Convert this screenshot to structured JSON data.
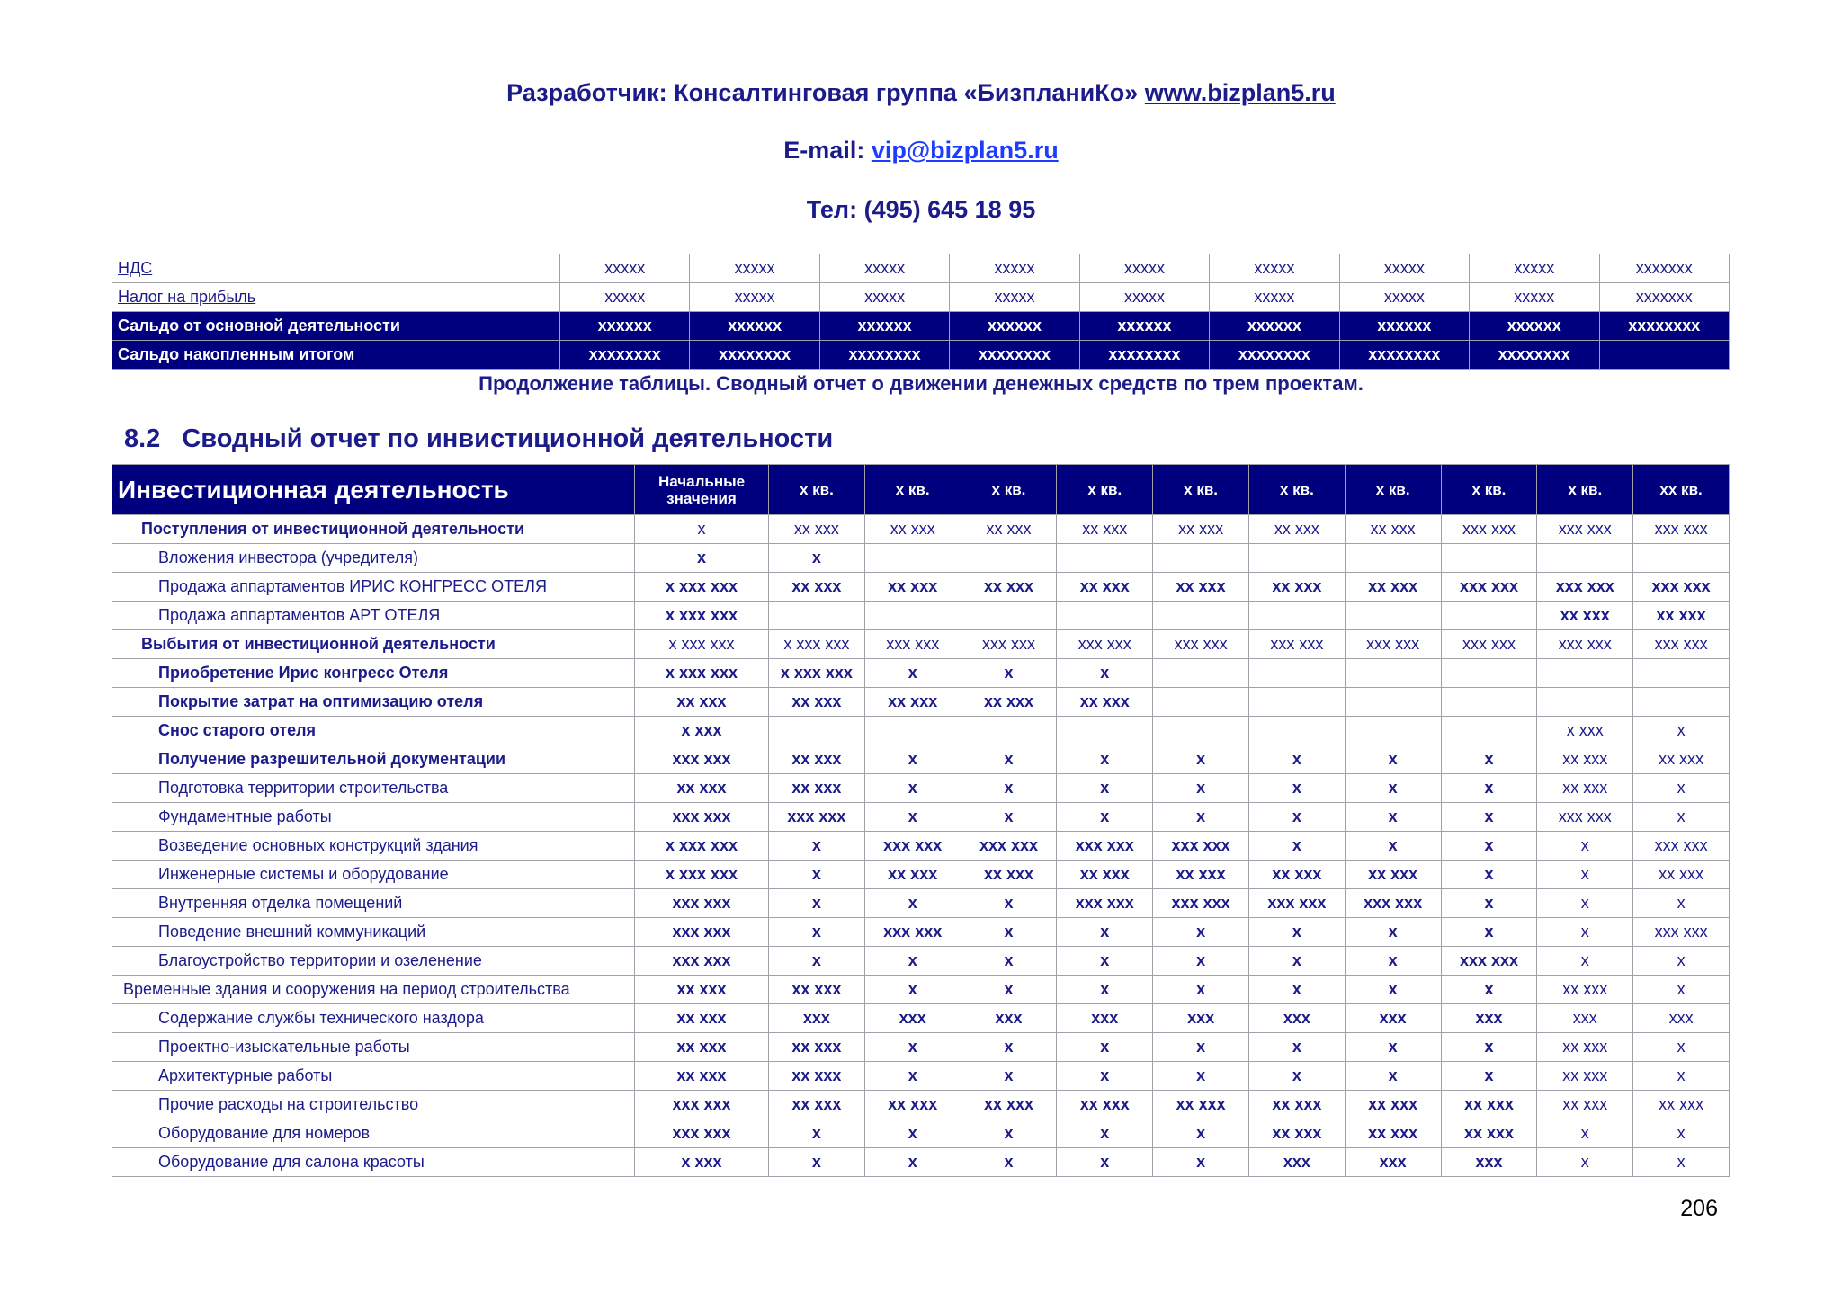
{
  "header": {
    "developer": "Разработчик: Консалтинговая группа «БизпланиКо»",
    "site": "www.bizplan5.ru",
    "email_label": "E-mail:",
    "email": "vip@bizplan5.ru",
    "phone": "Тел: (495) 645 18 95"
  },
  "table1": {
    "rows": [
      [
        "НДС",
        "xxxxx",
        "xxxxx",
        "xxxxx",
        "xxxxx",
        "xxxxx",
        "xxxxx",
        "xxxxx",
        "xxxxx",
        "xxxxxxx"
      ],
      [
        "Налог на прибыль",
        "xxxxx",
        "xxxxx",
        "xxxxx",
        "xxxxx",
        "xxxxx",
        "xxxxx",
        "xxxxx",
        "xxxxx",
        "xxxxxxx"
      ],
      [
        "Сальдо от основной деятельности",
        "xxxxxx",
        "xxxxxx",
        "xxxxxx",
        "xxxxxx",
        "xxxxxx",
        "xxxxxx",
        "xxxxxx",
        "xxxxxx",
        "xxxxxxxx"
      ],
      [
        "Сальдо накопленным итогом",
        "xxxxxxxx",
        "xxxxxxxx",
        "xxxxxxxx",
        "xxxxxxxx",
        "xxxxxxxx",
        "xxxxxxxx",
        "xxxxxxxx",
        "xxxxxxxx"
      ]
    ]
  },
  "caption": "Продолжение таблицы. Сводный отчет о движении денежных средств по трем проектам.",
  "section": {
    "number": "8.2",
    "title": "Сводный отчет по инвистиционной деятельности"
  },
  "table2": {
    "header": [
      "Инвестиционная деятельность",
      "Начальные значения",
      "х кв.",
      "х кв.",
      "х кв.",
      "х кв.",
      "х кв.",
      "х кв.",
      "х кв.",
      "х кв.",
      "х кв.",
      "хх кв."
    ],
    "rows": [
      [
        "Поступления от инвестиционной деятельности",
        "х",
        "хх ххх",
        "хх ххх",
        "хх ххх",
        "хх ххх",
        "хх ххх",
        "хх ххх",
        "хх ххх",
        "ххх ххх",
        "ххх ххх",
        "ххх ххх"
      ],
      [
        "Вложения инвестора (учредителя)",
        "х",
        "х",
        null,
        null,
        null,
        null,
        null,
        null,
        null,
        null,
        null
      ],
      [
        "Продажа аппартаментов ИРИС КОНГРЕСС ОТЕЛЯ",
        "х ххх ххх",
        "хх ххх",
        "хх ххх",
        "хх ххх",
        "хх ххх",
        "хх ххх",
        "хх ххх",
        "хх ххх",
        "ххх ххх",
        "ххх ххх",
        "ххх ххх"
      ],
      [
        "Продажа аппартаментов АРТ ОТЕЛЯ",
        "х ххх ххх",
        null,
        null,
        null,
        null,
        null,
        null,
        null,
        null,
        "хх ххх",
        "хх ххх"
      ],
      [
        "Выбытия от инвестиционной деятельности",
        "х ххх ххх",
        "х ххх ххх",
        "ххх ххх",
        "ххх ххх",
        "ххх ххх",
        "ххх ххх",
        "ххх ххх",
        "ххх ххх",
        "ххх ххх",
        "ххх ххх",
        "ххх ххх"
      ],
      [
        "Приобретение Ирис конгресс Отеля",
        "х ххх ххх",
        "х ххх ххх",
        "х",
        "х",
        "х",
        null,
        null,
        null,
        null,
        null,
        null
      ],
      [
        "Покрытие затрат на оптимизацию отеля",
        "хх ххх",
        "хх ххх",
        "хх ххх",
        "хх ххх",
        "хх ххх",
        null,
        null,
        null,
        null,
        null,
        null
      ],
      [
        "Снос старого отеля",
        "х ххх",
        null,
        null,
        null,
        null,
        null,
        null,
        null,
        null,
        "х ххх",
        "х"
      ],
      [
        "Получение разрешительной документации",
        "ххх ххх",
        "хх ххх",
        "х",
        "х",
        "х",
        "х",
        "х",
        "х",
        "х",
        "хх ххх",
        "хх ххх"
      ],
      [
        "Подготовка территории строительства",
        "хх ххх",
        "хх ххх",
        "х",
        "х",
        "х",
        "х",
        "х",
        "х",
        "х",
        "хх ххх",
        "х"
      ],
      [
        "Фундаментные работы",
        "ххх ххх",
        "ххх ххх",
        "х",
        "х",
        "х",
        "х",
        "х",
        "х",
        "х",
        "ххх ххх",
        "х"
      ],
      [
        "Возведение основных конструкций здания",
        "х ххх ххх",
        "х",
        "ххх ххх",
        "ххх ххх",
        "ххх ххх",
        "ххх ххх",
        "х",
        "х",
        "х",
        "х",
        "ххх ххх"
      ],
      [
        "Инженерные системы и оборудование",
        "х ххх ххх",
        "х",
        "хх ххх",
        "хх ххх",
        "хх ххх",
        "хх ххх",
        "хх ххх",
        "хх ххх",
        "х",
        "х",
        "хх ххх"
      ],
      [
        "Внутренняя отделка помещений",
        "ххх ххх",
        "х",
        "х",
        "х",
        "ххх ххх",
        "ххх ххх",
        "ххх ххх",
        "ххх ххх",
        "х",
        "х",
        "х"
      ],
      [
        "Поведение внешний коммуникаций",
        "ххх ххх",
        "х",
        "ххх ххх",
        "х",
        "х",
        "х",
        "х",
        "х",
        "х",
        "х",
        "ххх ххх"
      ],
      [
        "Благоустройство территории и озеленение",
        "ххх ххх",
        "х",
        "х",
        "х",
        "х",
        "х",
        "х",
        "х",
        "ххх ххх",
        "х",
        "х"
      ],
      [
        "Временные здания и сооружения на период строительства",
        "хх ххх",
        "хх ххх",
        "х",
        "х",
        "х",
        "х",
        "х",
        "х",
        "х",
        "хх ххх",
        "х"
      ],
      [
        "Содержание службы технического наздора",
        "хх ххх",
        "ххх",
        "ххх",
        "ххх",
        "ххх",
        "ххх",
        "ххх",
        "ххх",
        "ххх",
        "ххх",
        "ххх"
      ],
      [
        "Проектно-изыскательные работы",
        "хх ххх",
        "хх ххх",
        "х",
        "х",
        "х",
        "х",
        "х",
        "х",
        "х",
        "хх ххх",
        "х"
      ],
      [
        "Архитектурные работы",
        "хх ххх",
        "хх ххх",
        "х",
        "х",
        "х",
        "х",
        "х",
        "х",
        "х",
        "хх ххх",
        "х"
      ],
      [
        "Прочие расходы на строительство",
        "ххх ххх",
        "хх ххх",
        "хх ххх",
        "хх ххх",
        "хх ххх",
        "хх ххх",
        "хх ххх",
        "хх ххх",
        "хх ххх",
        "хх ххх",
        "хх ххх"
      ],
      [
        "Оборудование для номеров",
        "ххх ххх",
        "х",
        "х",
        "х",
        "х",
        "х",
        "хх ххх",
        "хх ххх",
        "хх ххх",
        "х",
        "х"
      ],
      [
        "Оборудование для салона красоты",
        "х ххх",
        "х",
        "х",
        "х",
        "х",
        "х",
        "ххх",
        "ххх",
        "ххх",
        "х",
        "х"
      ]
    ]
  },
  "page_number": "206"
}
